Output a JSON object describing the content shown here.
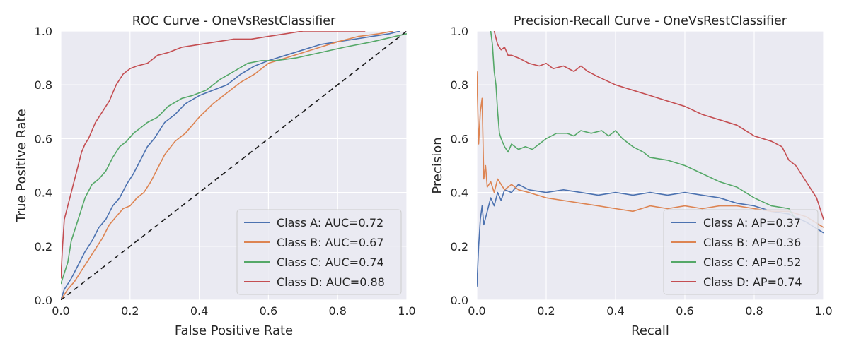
{
  "chart_data": [
    {
      "type": "line",
      "title": "ROC Curve - OneVsRestClassifier",
      "xlabel": "False Positive Rate",
      "ylabel": "True Positive Rate",
      "xlim": [
        0,
        1
      ],
      "ylim": [
        0,
        1
      ],
      "xticks": [
        "0.0",
        "0.2",
        "0.4",
        "0.6",
        "0.8",
        "1.0"
      ],
      "yticks": [
        "0.0",
        "0.2",
        "0.4",
        "0.6",
        "0.8",
        "1.0"
      ],
      "grid": true,
      "legend_position": "lower-right",
      "series": [
        {
          "name": "Class A: AUC=0.72",
          "color": "#4c72b0",
          "dash": "",
          "x": [
            0,
            0.01,
            0.03,
            0.05,
            0.07,
            0.09,
            0.11,
            0.13,
            0.15,
            0.17,
            0.19,
            0.21,
            0.23,
            0.25,
            0.27,
            0.3,
            0.33,
            0.36,
            0.4,
            0.44,
            0.48,
            0.52,
            0.56,
            0.6,
            0.65,
            0.7,
            0.75,
            0.8,
            0.85,
            0.9,
            0.95,
            0.98
          ],
          "y": [
            0,
            0.04,
            0.08,
            0.13,
            0.18,
            0.22,
            0.27,
            0.3,
            0.35,
            0.38,
            0.43,
            0.47,
            0.52,
            0.57,
            0.6,
            0.66,
            0.69,
            0.73,
            0.76,
            0.78,
            0.8,
            0.84,
            0.87,
            0.89,
            0.91,
            0.93,
            0.95,
            0.96,
            0.97,
            0.98,
            0.99,
            1.0
          ]
        },
        {
          "name": "Class B: AUC=0.67",
          "color": "#dd8452",
          "dash": "",
          "x": [
            0,
            0.02,
            0.04,
            0.06,
            0.08,
            0.1,
            0.12,
            0.14,
            0.16,
            0.18,
            0.2,
            0.22,
            0.24,
            0.26,
            0.28,
            0.3,
            0.33,
            0.36,
            0.4,
            0.44,
            0.48,
            0.52,
            0.56,
            0.6,
            0.65,
            0.7,
            0.75,
            0.8,
            0.86,
            0.92,
            0.96
          ],
          "y": [
            0,
            0.04,
            0.07,
            0.11,
            0.15,
            0.19,
            0.23,
            0.28,
            0.31,
            0.34,
            0.35,
            0.38,
            0.4,
            0.44,
            0.49,
            0.54,
            0.59,
            0.62,
            0.68,
            0.73,
            0.77,
            0.81,
            0.84,
            0.88,
            0.9,
            0.92,
            0.94,
            0.96,
            0.98,
            0.99,
            1.0
          ]
        },
        {
          "name": "Class C: AUC=0.74",
          "color": "#55a868",
          "dash": "",
          "x": [
            0,
            0.01,
            0.02,
            0.03,
            0.05,
            0.07,
            0.09,
            0.11,
            0.13,
            0.15,
            0.17,
            0.19,
            0.21,
            0.23,
            0.25,
            0.28,
            0.31,
            0.35,
            0.38,
            0.42,
            0.46,
            0.5,
            0.54,
            0.58,
            0.62,
            0.68,
            0.75,
            0.82,
            0.9,
            1.0
          ],
          "y": [
            0.06,
            0.1,
            0.14,
            0.22,
            0.3,
            0.38,
            0.43,
            0.45,
            0.48,
            0.53,
            0.57,
            0.59,
            0.62,
            0.64,
            0.66,
            0.68,
            0.72,
            0.75,
            0.76,
            0.78,
            0.82,
            0.85,
            0.88,
            0.89,
            0.89,
            0.9,
            0.92,
            0.94,
            0.96,
            0.99
          ]
        },
        {
          "name": "Class D: AUC=0.88",
          "color": "#c44e52",
          "dash": "",
          "x": [
            0,
            0.005,
            0.01,
            0.02,
            0.03,
            0.04,
            0.05,
            0.06,
            0.07,
            0.08,
            0.1,
            0.12,
            0.14,
            0.16,
            0.18,
            0.2,
            0.22,
            0.25,
            0.28,
            0.31,
            0.35,
            0.4,
            0.45,
            0.5,
            0.55,
            0.6,
            0.65,
            0.7,
            0.75,
            0.8,
            0.88
          ],
          "y": [
            0.08,
            0.2,
            0.3,
            0.35,
            0.4,
            0.45,
            0.5,
            0.55,
            0.58,
            0.6,
            0.66,
            0.7,
            0.74,
            0.8,
            0.84,
            0.86,
            0.87,
            0.88,
            0.91,
            0.92,
            0.94,
            0.95,
            0.96,
            0.97,
            0.97,
            0.98,
            0.99,
            1.0,
            1.0,
            1.0,
            1.0
          ]
        },
        {
          "name": "",
          "color": "#1a1a1a",
          "dash": "7,5",
          "x": [
            0,
            1
          ],
          "y": [
            0,
            1
          ]
        }
      ],
      "legend": [
        "Class A: AUC=0.72",
        "Class B: AUC=0.67",
        "Class C: AUC=0.74",
        "Class D: AUC=0.88"
      ]
    },
    {
      "type": "line",
      "title": "Precision-Recall Curve - OneVsRestClassifier",
      "xlabel": "Recall",
      "ylabel": "Precision",
      "xlim": [
        0,
        1
      ],
      "ylim": [
        0,
        1
      ],
      "xticks": [
        "0.0",
        "0.2",
        "0.4",
        "0.6",
        "0.8",
        "1.0"
      ],
      "yticks": [
        "0.0",
        "0.2",
        "0.4",
        "0.6",
        "0.8",
        "1.0"
      ],
      "grid": true,
      "legend_position": "lower-right",
      "series": [
        {
          "name": "Class A: AP=0.37",
          "color": "#4c72b0",
          "dash": "",
          "x": [
            0,
            0.005,
            0.01,
            0.015,
            0.02,
            0.03,
            0.04,
            0.05,
            0.06,
            0.07,
            0.08,
            0.1,
            0.12,
            0.15,
            0.2,
            0.25,
            0.3,
            0.35,
            0.4,
            0.45,
            0.5,
            0.55,
            0.6,
            0.65,
            0.7,
            0.75,
            0.8,
            0.85,
            0.9,
            0.95,
            1.0
          ],
          "y": [
            0.05,
            0.2,
            0.3,
            0.35,
            0.28,
            0.33,
            0.38,
            0.35,
            0.4,
            0.37,
            0.41,
            0.4,
            0.43,
            0.41,
            0.4,
            0.41,
            0.4,
            0.39,
            0.4,
            0.39,
            0.4,
            0.39,
            0.4,
            0.39,
            0.38,
            0.36,
            0.35,
            0.33,
            0.32,
            0.29,
            0.25
          ]
        },
        {
          "name": "Class B: AP=0.36",
          "color": "#dd8452",
          "dash": "",
          "x": [
            0,
            0.005,
            0.01,
            0.015,
            0.02,
            0.025,
            0.03,
            0.04,
            0.05,
            0.06,
            0.08,
            0.1,
            0.12,
            0.15,
            0.2,
            0.25,
            0.3,
            0.35,
            0.4,
            0.45,
            0.5,
            0.55,
            0.6,
            0.65,
            0.7,
            0.75,
            0.8,
            0.85,
            0.9,
            0.95,
            1.0
          ],
          "y": [
            0.85,
            0.58,
            0.7,
            0.75,
            0.45,
            0.5,
            0.42,
            0.44,
            0.4,
            0.45,
            0.41,
            0.43,
            0.41,
            0.4,
            0.38,
            0.37,
            0.36,
            0.35,
            0.34,
            0.33,
            0.35,
            0.34,
            0.35,
            0.34,
            0.35,
            0.35,
            0.34,
            0.33,
            0.33,
            0.31,
            0.27
          ]
        },
        {
          "name": "Class C: AP=0.52",
          "color": "#55a868",
          "dash": "",
          "x": [
            0.04,
            0.045,
            0.05,
            0.055,
            0.06,
            0.065,
            0.07,
            0.08,
            0.09,
            0.1,
            0.12,
            0.14,
            0.16,
            0.18,
            0.2,
            0.23,
            0.26,
            0.28,
            0.3,
            0.33,
            0.36,
            0.38,
            0.4,
            0.42,
            0.45,
            0.48,
            0.5,
            0.55,
            0.6,
            0.65,
            0.7,
            0.75,
            0.8,
            0.85,
            0.9,
            0.92
          ],
          "y": [
            1.0,
            0.95,
            0.85,
            0.8,
            0.7,
            0.62,
            0.6,
            0.57,
            0.55,
            0.58,
            0.56,
            0.57,
            0.56,
            0.58,
            0.6,
            0.62,
            0.62,
            0.61,
            0.63,
            0.62,
            0.63,
            0.61,
            0.63,
            0.6,
            0.57,
            0.55,
            0.53,
            0.52,
            0.5,
            0.47,
            0.44,
            0.42,
            0.38,
            0.35,
            0.34,
            0.3
          ]
        },
        {
          "name": "Class D: AP=0.74",
          "color": "#c44e52",
          "dash": "",
          "x": [
            0.05,
            0.06,
            0.07,
            0.08,
            0.09,
            0.1,
            0.12,
            0.15,
            0.18,
            0.2,
            0.22,
            0.25,
            0.28,
            0.3,
            0.32,
            0.35,
            0.4,
            0.45,
            0.5,
            0.55,
            0.6,
            0.65,
            0.7,
            0.75,
            0.8,
            0.85,
            0.88,
            0.9,
            0.92,
            0.94,
            0.96,
            0.98,
            1.0
          ],
          "y": [
            1.0,
            0.95,
            0.93,
            0.94,
            0.91,
            0.91,
            0.9,
            0.88,
            0.87,
            0.88,
            0.86,
            0.87,
            0.85,
            0.87,
            0.85,
            0.83,
            0.8,
            0.78,
            0.76,
            0.74,
            0.72,
            0.69,
            0.67,
            0.65,
            0.61,
            0.59,
            0.57,
            0.52,
            0.5,
            0.46,
            0.42,
            0.38,
            0.3
          ]
        }
      ],
      "legend": [
        "Class A: AP=0.37",
        "Class B: AP=0.36",
        "Class C: AP=0.52",
        "Class D: AP=0.74"
      ]
    }
  ]
}
